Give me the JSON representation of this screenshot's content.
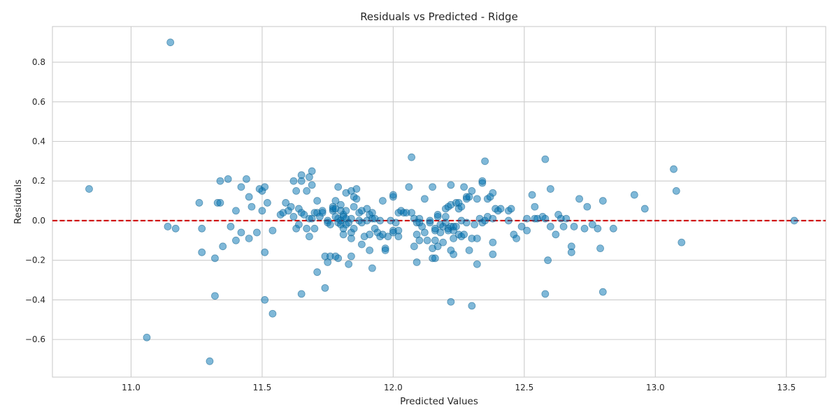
{
  "chart_data": {
    "type": "scatter",
    "title": "Residuals vs Predicted - Ridge",
    "xlabel": "Predicted Values",
    "ylabel": "Residuals",
    "xlim": [
      10.7,
      13.65
    ],
    "ylim": [
      -0.79,
      0.98
    ],
    "xticks": [
      11.0,
      11.5,
      12.0,
      12.5,
      13.0,
      13.5
    ],
    "xtick_labels": [
      "11.0",
      "11.5",
      "12.0",
      "12.5",
      "13.0",
      "13.5"
    ],
    "yticks": [
      -0.6,
      -0.4,
      -0.2,
      0.0,
      0.2,
      0.4,
      0.6,
      0.8
    ],
    "ytick_labels": [
      "−0.6",
      "−0.4",
      "−0.2",
      "0.0",
      "0.2",
      "0.4",
      "0.6",
      "0.8"
    ],
    "grid": true,
    "reference_line": {
      "y": 0.0,
      "style": "dashed",
      "color": "#d00000"
    },
    "point_color": "#0072b2",
    "points": [
      [
        10.84,
        0.16
      ],
      [
        11.06,
        -0.59
      ],
      [
        11.15,
        0.9
      ],
      [
        11.14,
        -0.03
      ],
      [
        11.17,
        -0.04
      ],
      [
        11.26,
        0.09
      ],
      [
        11.27,
        -0.04
      ],
      [
        11.27,
        -0.16
      ],
      [
        11.3,
        -0.71
      ],
      [
        11.32,
        -0.38
      ],
      [
        11.32,
        -0.19
      ],
      [
        11.33,
        0.09
      ],
      [
        11.34,
        0.09
      ],
      [
        11.34,
        0.2
      ],
      [
        11.35,
        -0.13
      ],
      [
        11.37,
        0.21
      ],
      [
        11.38,
        -0.03
      ],
      [
        11.4,
        0.05
      ],
      [
        11.4,
        -0.1
      ],
      [
        11.42,
        0.17
      ],
      [
        11.42,
        -0.06
      ],
      [
        11.44,
        0.21
      ],
      [
        11.45,
        0.12
      ],
      [
        11.45,
        -0.09
      ],
      [
        11.46,
        0.07
      ],
      [
        11.48,
        -0.06
      ],
      [
        11.49,
        0.16
      ],
      [
        11.5,
        0.05
      ],
      [
        11.5,
        0.15
      ],
      [
        11.51,
        0.17
      ],
      [
        11.51,
        -0.16
      ],
      [
        11.51,
        -0.4
      ],
      [
        11.52,
        0.09
      ],
      [
        11.54,
        -0.05
      ],
      [
        11.54,
        -0.47
      ],
      [
        11.57,
        0.03
      ],
      [
        11.58,
        0.04
      ],
      [
        11.59,
        0.09
      ],
      [
        11.6,
        0.05
      ],
      [
        11.61,
        0.07
      ],
      [
        11.62,
        0.2
      ],
      [
        11.62,
        0.02
      ],
      [
        11.63,
        0.15
      ],
      [
        11.63,
        -0.04
      ],
      [
        11.64,
        0.06
      ],
      [
        11.64,
        -0.02
      ],
      [
        11.65,
        0.04
      ],
      [
        11.65,
        0.23
      ],
      [
        11.65,
        0.2
      ],
      [
        11.65,
        -0.37
      ],
      [
        11.66,
        0.03
      ],
      [
        11.67,
        0.15
      ],
      [
        11.67,
        -0.04
      ],
      [
        11.68,
        0.01
      ],
      [
        11.68,
        -0.08
      ],
      [
        11.68,
        0.22
      ],
      [
        11.69,
        0.25
      ],
      [
        11.69,
        0.18
      ],
      [
        11.69,
        0.01
      ],
      [
        11.7,
        0.04
      ],
      [
        11.7,
        -0.04
      ],
      [
        11.71,
        0.1
      ],
      [
        11.71,
        0.04
      ],
      [
        11.71,
        -0.26
      ],
      [
        11.72,
        0.02
      ],
      [
        11.73,
        0.05
      ],
      [
        11.73,
        0.04
      ],
      [
        11.74,
        -0.18
      ],
      [
        11.74,
        -0.34
      ],
      [
        11.75,
        0.0
      ],
      [
        11.75,
        -0.01
      ],
      [
        11.75,
        -0.21
      ],
      [
        11.76,
        -0.02
      ],
      [
        11.76,
        -0.18
      ],
      [
        11.77,
        0.05
      ],
      [
        11.77,
        0.06
      ],
      [
        11.77,
        0.07
      ],
      [
        11.78,
        -0.18
      ],
      [
        11.78,
        0.1
      ],
      [
        11.78,
        0.02
      ],
      [
        11.78,
        0.06
      ],
      [
        11.79,
        0.17
      ],
      [
        11.79,
        0.01
      ],
      [
        11.79,
        -0.01
      ],
      [
        11.79,
        -0.19
      ],
      [
        11.8,
        0.05
      ],
      [
        11.8,
        -0.02
      ],
      [
        11.8,
        0.08
      ],
      [
        11.8,
        0.0
      ],
      [
        11.81,
        0.03
      ],
      [
        11.81,
        -0.07
      ],
      [
        11.81,
        0.02
      ],
      [
        11.81,
        -0.04
      ],
      [
        11.82,
        0.14
      ],
      [
        11.82,
        0.01
      ],
      [
        11.82,
        -0.02
      ],
      [
        11.82,
        0.05
      ],
      [
        11.83,
        -0.01
      ],
      [
        11.83,
        -0.22
      ],
      [
        11.84,
        0.15
      ],
      [
        11.84,
        -0.06
      ],
      [
        11.84,
        -0.09
      ],
      [
        11.84,
        -0.18
      ],
      [
        11.84,
        0.01
      ],
      [
        11.85,
        0.07
      ],
      [
        11.85,
        -0.04
      ],
      [
        11.85,
        0.12
      ],
      [
        11.86,
        0.11
      ],
      [
        11.86,
        0.16
      ],
      [
        11.87,
        0.0
      ],
      [
        11.87,
        0.04
      ],
      [
        11.88,
        -0.12
      ],
      [
        11.88,
        -0.01
      ],
      [
        11.88,
        0.05
      ],
      [
        11.89,
        -0.08
      ],
      [
        11.9,
        0.0
      ],
      [
        11.9,
        0.06
      ],
      [
        11.91,
        -0.07
      ],
      [
        11.91,
        -0.15
      ],
      [
        11.91,
        0.03
      ],
      [
        11.92,
        0.04
      ],
      [
        11.92,
        0.01
      ],
      [
        11.92,
        -0.24
      ],
      [
        11.93,
        -0.04
      ],
      [
        11.93,
        0.01
      ],
      [
        11.94,
        -0.06
      ],
      [
        11.95,
        -0.08
      ],
      [
        11.95,
        0.0
      ],
      [
        11.96,
        0.1
      ],
      [
        11.96,
        -0.07
      ],
      [
        11.97,
        -0.14
      ],
      [
        11.97,
        -0.15
      ],
      [
        11.98,
        -0.08
      ],
      [
        11.99,
        0.0
      ],
      [
        12.0,
        0.12
      ],
      [
        12.0,
        0.13
      ],
      [
        12.0,
        -0.05
      ],
      [
        12.0,
        -0.06
      ],
      [
        12.01,
        -0.01
      ],
      [
        12.02,
        0.04
      ],
      [
        12.02,
        -0.08
      ],
      [
        12.02,
        -0.05
      ],
      [
        12.03,
        0.05
      ],
      [
        12.04,
        0.04
      ],
      [
        12.05,
        0.04
      ],
      [
        12.06,
        0.17
      ],
      [
        12.07,
        0.32
      ],
      [
        12.07,
        0.04
      ],
      [
        12.08,
        -0.13
      ],
      [
        12.08,
        0.01
      ],
      [
        12.09,
        -0.21
      ],
      [
        12.09,
        -0.01
      ],
      [
        12.09,
        -0.07
      ],
      [
        12.1,
        0.01
      ],
      [
        12.1,
        -0.1
      ],
      [
        12.1,
        -0.01
      ],
      [
        12.11,
        -0.03
      ],
      [
        12.12,
        -0.06
      ],
      [
        12.12,
        0.11
      ],
      [
        12.13,
        -0.1
      ],
      [
        12.14,
        -0.01
      ],
      [
        12.14,
        0.0
      ],
      [
        12.15,
        0.17
      ],
      [
        12.15,
        -0.14
      ],
      [
        12.15,
        -0.19
      ],
      [
        12.16,
        -0.05
      ],
      [
        12.16,
        -0.19
      ],
      [
        12.16,
        -0.1
      ],
      [
        12.16,
        -0.04
      ],
      [
        12.17,
        0.02
      ],
      [
        12.17,
        -0.13
      ],
      [
        12.17,
        0.03
      ],
      [
        12.18,
        -0.06
      ],
      [
        12.18,
        -0.02
      ],
      [
        12.19,
        -0.11
      ],
      [
        12.19,
        -0.03
      ],
      [
        12.2,
        0.06
      ],
      [
        12.2,
        0.02
      ],
      [
        12.2,
        -0.01
      ],
      [
        12.21,
        0.07
      ],
      [
        12.21,
        -0.04
      ],
      [
        12.21,
        -0.05
      ],
      [
        12.22,
        0.08
      ],
      [
        12.22,
        -0.03
      ],
      [
        12.22,
        0.18
      ],
      [
        12.22,
        -0.15
      ],
      [
        12.22,
        -0.41
      ],
      [
        12.23,
        -0.05
      ],
      [
        12.23,
        -0.17
      ],
      [
        12.23,
        -0.03
      ],
      [
        12.23,
        -0.09
      ],
      [
        12.24,
        -0.03
      ],
      [
        12.24,
        0.09
      ],
      [
        12.25,
        0.09
      ],
      [
        12.25,
        -0.07
      ],
      [
        12.25,
        0.06
      ],
      [
        12.26,
        0.0
      ],
      [
        12.26,
        0.07
      ],
      [
        12.26,
        -0.08
      ],
      [
        12.27,
        -0.07
      ],
      [
        12.27,
        0.17
      ],
      [
        12.28,
        -0.01
      ],
      [
        12.28,
        0.12
      ],
      [
        12.28,
        0.11
      ],
      [
        12.29,
        0.12
      ],
      [
        12.29,
        -0.15
      ],
      [
        12.3,
        -0.09
      ],
      [
        12.3,
        0.15
      ],
      [
        12.3,
        -0.43
      ],
      [
        12.31,
        -0.02
      ],
      [
        12.32,
        -0.09
      ],
      [
        12.32,
        -0.22
      ],
      [
        12.32,
        0.11
      ],
      [
        12.33,
        0.01
      ],
      [
        12.34,
        0.19
      ],
      [
        12.34,
        0.2
      ],
      [
        12.34,
        -0.01
      ],
      [
        12.35,
        0.3
      ],
      [
        12.35,
        0.0
      ],
      [
        12.36,
        0.11
      ],
      [
        12.36,
        0.02
      ],
      [
        12.37,
        0.12
      ],
      [
        12.38,
        0.01
      ],
      [
        12.38,
        -0.11
      ],
      [
        12.38,
        -0.17
      ],
      [
        12.38,
        0.14
      ],
      [
        12.39,
        0.06
      ],
      [
        12.4,
        0.05
      ],
      [
        12.41,
        0.06
      ],
      [
        12.44,
        0.05
      ],
      [
        12.44,
        0.0
      ],
      [
        12.45,
        0.06
      ],
      [
        12.46,
        -0.07
      ],
      [
        12.47,
        -0.09
      ],
      [
        12.49,
        -0.03
      ],
      [
        12.51,
        0.01
      ],
      [
        12.51,
        -0.05
      ],
      [
        12.53,
        0.13
      ],
      [
        12.54,
        0.01
      ],
      [
        12.54,
        0.07
      ],
      [
        12.55,
        0.01
      ],
      [
        12.57,
        0.02
      ],
      [
        12.58,
        0.31
      ],
      [
        12.58,
        -0.37
      ],
      [
        12.58,
        0.01
      ],
      [
        12.59,
        -0.2
      ],
      [
        12.6,
        -0.03
      ],
      [
        12.6,
        0.16
      ],
      [
        12.62,
        -0.07
      ],
      [
        12.63,
        0.03
      ],
      [
        12.64,
        0.01
      ],
      [
        12.65,
        -0.03
      ],
      [
        12.66,
        0.01
      ],
      [
        12.68,
        -0.13
      ],
      [
        12.68,
        -0.16
      ],
      [
        12.69,
        -0.03
      ],
      [
        12.71,
        0.11
      ],
      [
        12.73,
        -0.04
      ],
      [
        12.74,
        0.07
      ],
      [
        12.76,
        -0.02
      ],
      [
        12.78,
        -0.04
      ],
      [
        12.79,
        -0.14
      ],
      [
        12.8,
        0.1
      ],
      [
        12.8,
        -0.36
      ],
      [
        12.84,
        -0.04
      ],
      [
        12.92,
        0.13
      ],
      [
        12.96,
        0.06
      ],
      [
        13.07,
        0.26
      ],
      [
        13.08,
        0.15
      ],
      [
        13.1,
        -0.11
      ],
      [
        13.53,
        0.0
      ]
    ]
  }
}
